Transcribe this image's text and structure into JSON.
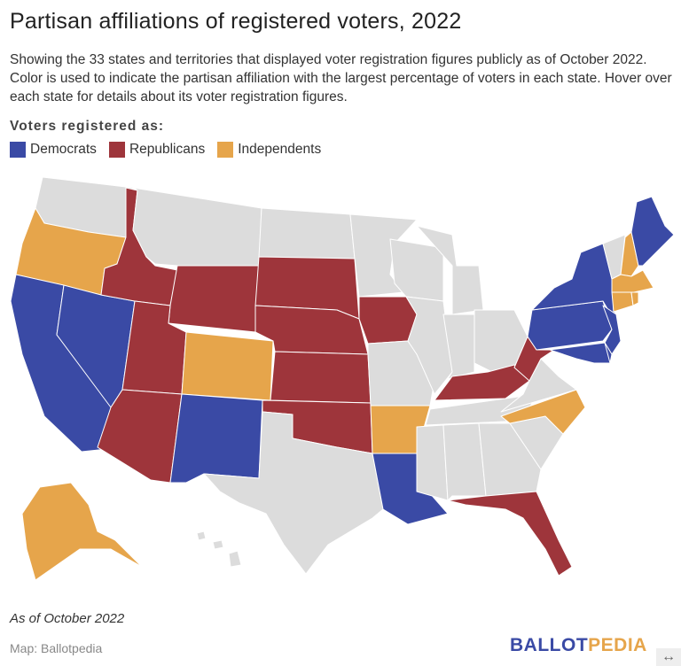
{
  "title": "Partisan affiliations of registered voters, 2022",
  "description": "Showing the 33 states and territories that displayed voter registration figures publicly as of October 2022. Color is used to indicate the partisan affiliation with the largest percentage of voters in each state. Hover over each state for details about its voter registration figures.",
  "legend": {
    "title": "Voters registered as:",
    "items": [
      {
        "key": "dem",
        "label": "Democrats",
        "color": "#3a4aa5"
      },
      {
        "key": "rep",
        "label": "Republicans",
        "color": "#9e353b"
      },
      {
        "key": "ind",
        "label": "Independents",
        "color": "#e6a54b"
      }
    ],
    "no_data_color": "#dcdcdc"
  },
  "states": {
    "CA": "dem",
    "NV": "dem",
    "NM": "dem",
    "LA": "dem",
    "NY": "dem",
    "PA": "dem",
    "NJ": "dem",
    "MD": "dem",
    "DE": "dem",
    "ME": "dem",
    "ID": "rep",
    "WY": "rep",
    "UT": "rep",
    "AZ": "rep",
    "SD": "rep",
    "NE": "rep",
    "KS": "rep",
    "OK": "rep",
    "IA": "rep",
    "KY": "rep",
    "WV": "rep",
    "FL": "rep",
    "OR": "ind",
    "CO": "ind",
    "AR": "ind",
    "NC": "ind",
    "NH": "ind",
    "MA": "ind",
    "CT": "ind",
    "RI": "ind",
    "AK": "ind"
  },
  "note": "As of October 2022",
  "source": "Map: Ballotpedia",
  "logo": {
    "part1": "BALLOT",
    "part2": "PEDIA",
    "color1": "#3a4aa5",
    "color2": "#e6a54b"
  },
  "resize_icon": "↔"
}
